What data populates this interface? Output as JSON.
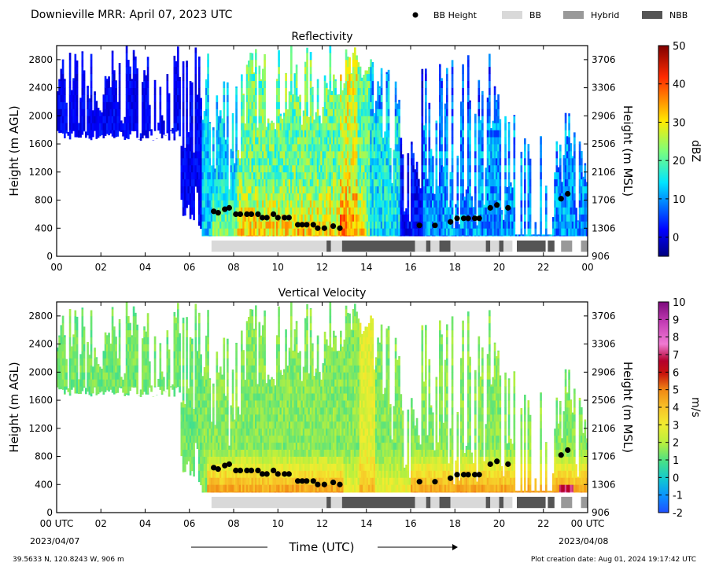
{
  "header": {
    "title": "Downieville MRR:  April 07, 2023 UTC",
    "legend": [
      {
        "label": "BB Height",
        "kind": "dot",
        "color": "#000000"
      },
      {
        "label": "BB",
        "kind": "box",
        "color": "#d9d9d9"
      },
      {
        "label": "Hybrid",
        "kind": "box",
        "color": "#999999"
      },
      {
        "label": "NBB",
        "kind": "box",
        "color": "#555555"
      }
    ]
  },
  "footer": {
    "coords": "39.5633 N, 120.8243 W, 906 m",
    "created": "Plot creation date: Aug 01, 2024 19:17:42 UTC",
    "xlabel": "Time (UTC)",
    "start_date": "2023/04/07",
    "end_date": "2023/04/08"
  },
  "axes": {
    "x_ticks": [
      "00",
      "02",
      "04",
      "06",
      "08",
      "10",
      "12",
      "14",
      "16",
      "18",
      "20",
      "22",
      "00"
    ],
    "x_ticks_bottom": [
      "00 UTC",
      "02",
      "04",
      "06",
      "08",
      "10",
      "12",
      "14",
      "16",
      "18",
      "20",
      "22",
      "00 UTC"
    ],
    "y_left_ticks": [
      "0",
      "400",
      "800",
      "1200",
      "1600",
      "2000",
      "2400",
      "2800"
    ],
    "y_right_ticks": [
      "906",
      "1306",
      "1706",
      "2106",
      "2506",
      "2906",
      "3306",
      "3706"
    ],
    "y_left_label": "Height (m AGL)",
    "y_right_label": "Height (m MSL)"
  },
  "chart_data": [
    {
      "type": "heatmap",
      "title": "Reflectivity",
      "x_unit": "hour UTC",
      "xlim": [
        0,
        24
      ],
      "ylim": [
        0,
        3000
      ],
      "colorbar": {
        "label": "dBZ",
        "range": [
          -5,
          50
        ],
        "ticks": [
          "0",
          "10",
          "20",
          "30",
          "40",
          "50"
        ],
        "tick_values": [
          0,
          10,
          20,
          30,
          40,
          50
        ]
      },
      "bright_band_heights": [
        [
          7.1,
          640
        ],
        [
          7.3,
          620
        ],
        [
          7.6,
          670
        ],
        [
          7.8,
          690
        ],
        [
          8.1,
          600
        ],
        [
          8.3,
          600
        ],
        [
          8.6,
          600
        ],
        [
          8.8,
          600
        ],
        [
          9.1,
          600
        ],
        [
          9.3,
          550
        ],
        [
          9.5,
          550
        ],
        [
          9.8,
          600
        ],
        [
          10.0,
          550
        ],
        [
          10.3,
          550
        ],
        [
          10.5,
          550
        ],
        [
          10.9,
          450
        ],
        [
          11.1,
          450
        ],
        [
          11.3,
          450
        ],
        [
          11.6,
          450
        ],
        [
          11.8,
          400
        ],
        [
          12.1,
          400
        ],
        [
          12.5,
          430
        ],
        [
          12.8,
          400
        ],
        [
          16.4,
          440
        ],
        [
          17.1,
          440
        ],
        [
          17.8,
          490
        ],
        [
          18.1,
          540
        ],
        [
          18.4,
          540
        ],
        [
          18.6,
          540
        ],
        [
          18.9,
          540
        ],
        [
          19.1,
          540
        ],
        [
          19.6,
          690
        ],
        [
          19.9,
          730
        ],
        [
          20.4,
          690
        ],
        [
          22.8,
          820
        ],
        [
          23.1,
          890
        ]
      ],
      "band_types": [
        {
          "start": 7.0,
          "end": 12.2,
          "type": "BB"
        },
        {
          "start": 12.2,
          "end": 12.4,
          "type": "NBB"
        },
        {
          "start": 12.4,
          "end": 12.9,
          "type": "BB"
        },
        {
          "start": 12.9,
          "end": 16.2,
          "type": "NBB"
        },
        {
          "start": 16.2,
          "end": 16.7,
          "type": "BB"
        },
        {
          "start": 16.7,
          "end": 16.9,
          "type": "NBB"
        },
        {
          "start": 16.9,
          "end": 17.3,
          "type": "BB"
        },
        {
          "start": 17.3,
          "end": 17.8,
          "type": "NBB"
        },
        {
          "start": 17.8,
          "end": 19.4,
          "type": "BB"
        },
        {
          "start": 19.4,
          "end": 19.6,
          "type": "NBB"
        },
        {
          "start": 19.6,
          "end": 20.0,
          "type": "BB"
        },
        {
          "start": 20.0,
          "end": 20.2,
          "type": "NBB"
        },
        {
          "start": 20.2,
          "end": 20.6,
          "type": "BB"
        },
        {
          "start": 20.8,
          "end": 22.1,
          "type": "NBB"
        },
        {
          "start": 22.2,
          "end": 22.5,
          "type": "NBB"
        },
        {
          "start": 22.8,
          "end": 23.3,
          "type": "Hybrid"
        },
        {
          "start": 23.7,
          "end": 24.0,
          "type": "Hybrid"
        }
      ]
    },
    {
      "type": "heatmap",
      "title": "Vertical Velocity",
      "x_unit": "hour UTC",
      "xlim": [
        0,
        24
      ],
      "ylim": [
        0,
        3000
      ],
      "colorbar": {
        "label": "m/s",
        "range": [
          -2,
          10
        ],
        "ticks": [
          "-2",
          "-1",
          "0",
          "1",
          "2",
          "3",
          "4",
          "5",
          "6",
          "7",
          "8",
          "9",
          "10"
        ],
        "tick_values": [
          -2,
          -1,
          0,
          1,
          2,
          3,
          4,
          5,
          6,
          7,
          8,
          9,
          10
        ]
      },
      "bright_band_heights": [
        [
          7.1,
          640
        ],
        [
          7.3,
          620
        ],
        [
          7.6,
          670
        ],
        [
          7.8,
          690
        ],
        [
          8.1,
          600
        ],
        [
          8.3,
          600
        ],
        [
          8.6,
          600
        ],
        [
          8.8,
          600
        ],
        [
          9.1,
          600
        ],
        [
          9.3,
          550
        ],
        [
          9.5,
          550
        ],
        [
          9.8,
          600
        ],
        [
          10.0,
          550
        ],
        [
          10.3,
          550
        ],
        [
          10.5,
          550
        ],
        [
          10.9,
          450
        ],
        [
          11.1,
          450
        ],
        [
          11.3,
          450
        ],
        [
          11.6,
          450
        ],
        [
          11.8,
          400
        ],
        [
          12.1,
          400
        ],
        [
          12.5,
          430
        ],
        [
          12.8,
          400
        ],
        [
          16.4,
          440
        ],
        [
          17.1,
          440
        ],
        [
          17.8,
          490
        ],
        [
          18.1,
          540
        ],
        [
          18.4,
          540
        ],
        [
          18.6,
          540
        ],
        [
          18.9,
          540
        ],
        [
          19.1,
          540
        ],
        [
          19.6,
          690
        ],
        [
          19.9,
          730
        ],
        [
          20.4,
          690
        ],
        [
          22.8,
          820
        ],
        [
          23.1,
          890
        ]
      ],
      "band_types": [
        {
          "start": 7.0,
          "end": 12.2,
          "type": "BB"
        },
        {
          "start": 12.2,
          "end": 12.4,
          "type": "NBB"
        },
        {
          "start": 12.4,
          "end": 12.9,
          "type": "BB"
        },
        {
          "start": 12.9,
          "end": 16.2,
          "type": "NBB"
        },
        {
          "start": 16.2,
          "end": 16.7,
          "type": "BB"
        },
        {
          "start": 16.7,
          "end": 16.9,
          "type": "NBB"
        },
        {
          "start": 16.9,
          "end": 17.3,
          "type": "BB"
        },
        {
          "start": 17.3,
          "end": 17.8,
          "type": "NBB"
        },
        {
          "start": 17.8,
          "end": 19.4,
          "type": "BB"
        },
        {
          "start": 19.4,
          "end": 19.6,
          "type": "NBB"
        },
        {
          "start": 19.6,
          "end": 20.0,
          "type": "BB"
        },
        {
          "start": 20.0,
          "end": 20.2,
          "type": "NBB"
        },
        {
          "start": 20.2,
          "end": 20.6,
          "type": "BB"
        },
        {
          "start": 20.8,
          "end": 22.1,
          "type": "NBB"
        },
        {
          "start": 22.2,
          "end": 22.5,
          "type": "NBB"
        },
        {
          "start": 22.8,
          "end": 23.3,
          "type": "Hybrid"
        },
        {
          "start": 23.7,
          "end": 24.0,
          "type": "Hybrid"
        }
      ]
    }
  ]
}
